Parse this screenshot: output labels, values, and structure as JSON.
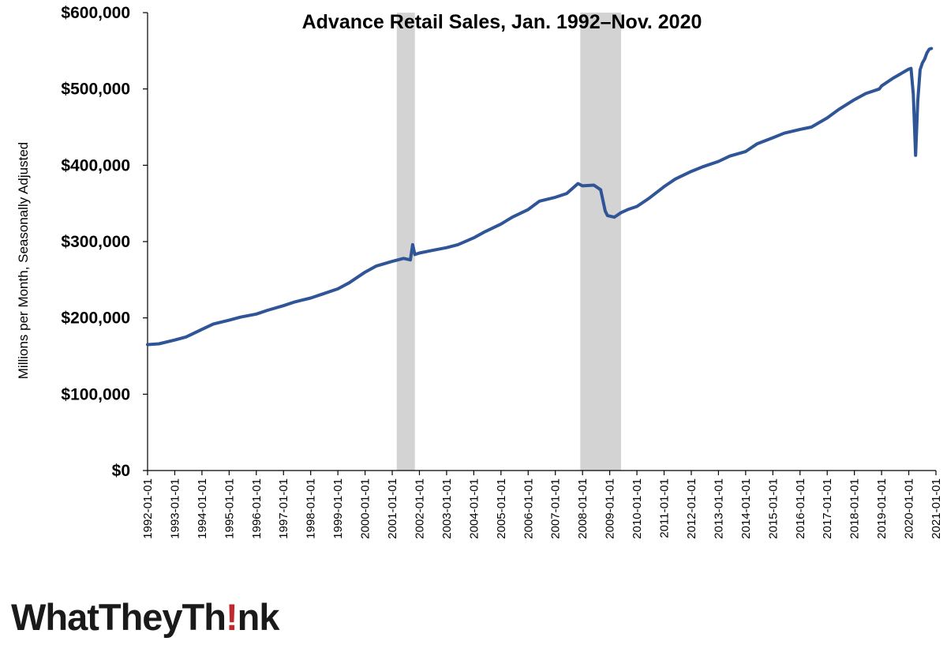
{
  "chart_data": {
    "type": "line",
    "title": "Advance Retail Sales, Jan. 1992–Nov. 2020",
    "ylabel": "Millions per Month, Seasonally Adjusted",
    "xlabel": "",
    "ylim": [
      0,
      600000
    ],
    "xlim": [
      "1992-01-01",
      "2021-01-01"
    ],
    "yticks": [
      "$0",
      "$100,000",
      "$200,000",
      "$300,000",
      "$400,000",
      "$500,000",
      "$600,000"
    ],
    "ytick_values": [
      0,
      100000,
      200000,
      300000,
      400000,
      500000,
      600000
    ],
    "xticks": [
      "1992-01-01",
      "1993-01-01",
      "1994-01-01",
      "1995-01-01",
      "1996-01-01",
      "1997-01-01",
      "1998-01-01",
      "1999-01-01",
      "2000-01-01",
      "2001-01-01",
      "2002-01-01",
      "2003-01-01",
      "2004-01-01",
      "2005-01-01",
      "2006-01-01",
      "2007-01-01",
      "2008-01-01",
      "2009-01-01",
      "2010-01-01",
      "2011-01-01",
      "2012-01-01",
      "2013-01-01",
      "2014-01-01",
      "2015-01-01",
      "2016-01-01",
      "2017-01-01",
      "2018-01-01",
      "2019-01-01",
      "2020-01-01",
      "2021-01-01"
    ],
    "grid": false,
    "line_color": "#2f5597",
    "recession_color": "#d3d3d3",
    "recession_periods": [
      {
        "start": "2001-03-01",
        "end": "2001-11-01"
      },
      {
        "start": "2007-12-01",
        "end": "2009-06-01"
      }
    ],
    "series": [
      {
        "x": [
          "1992-01-01",
          "1992-06-01",
          "1993-01-01",
          "1993-06-01",
          "1994-01-01",
          "1994-06-01",
          "1995-01-01",
          "1995-06-01",
          "1996-01-01",
          "1996-06-01",
          "1997-01-01",
          "1997-06-01",
          "1998-01-01",
          "1998-06-01",
          "1999-01-01",
          "1999-06-01",
          "2000-01-01",
          "2000-06-01",
          "2001-01-01",
          "2001-06-01",
          "2001-09-01",
          "2001-10-01",
          "2001-11-01",
          "2002-01-01",
          "2002-06-01",
          "2003-01-01",
          "2003-06-01",
          "2004-01-01",
          "2004-06-01",
          "2005-01-01",
          "2005-06-01",
          "2006-01-01",
          "2006-06-01",
          "2007-01-01",
          "2007-06-01",
          "2007-11-01",
          "2008-01-01",
          "2008-06-01",
          "2008-09-01",
          "2008-11-01",
          "2008-12-01",
          "2009-03-01",
          "2009-06-01",
          "2009-09-01",
          "2010-01-01",
          "2010-06-01",
          "2011-01-01",
          "2011-06-01",
          "2012-01-01",
          "2012-06-01",
          "2013-01-01",
          "2013-06-01",
          "2014-01-01",
          "2014-06-01",
          "2015-01-01",
          "2015-06-01",
          "2016-01-01",
          "2016-06-01",
          "2017-01-01",
          "2017-06-01",
          "2018-01-01",
          "2018-06-01",
          "2018-12-01",
          "2019-01-01",
          "2019-06-01",
          "2020-01-01",
          "2020-02-01",
          "2020-03-01",
          "2020-04-01",
          "2020-05-01",
          "2020-06-01",
          "2020-07-01",
          "2020-08-01",
          "2020-09-01",
          "2020-10-01",
          "2020-11-01"
        ],
        "values": [
          165000,
          166000,
          171000,
          175000,
          185000,
          192000,
          197000,
          201000,
          205000,
          210000,
          216000,
          221000,
          226000,
          231000,
          238000,
          246000,
          260000,
          268000,
          274000,
          278000,
          276000,
          296000,
          283000,
          285000,
          288000,
          292000,
          296000,
          305000,
          313000,
          323000,
          332000,
          342000,
          353000,
          358000,
          363000,
          376000,
          373000,
          374000,
          368000,
          340000,
          334000,
          332000,
          338000,
          342000,
          346000,
          356000,
          372000,
          382000,
          392000,
          398000,
          405000,
          412000,
          418000,
          428000,
          436000,
          442000,
          447000,
          450000,
          462000,
          473000,
          486000,
          494000,
          500000,
          504000,
          514000,
          526000,
          527000,
          493000,
          413000,
          485000,
          525000,
          534000,
          539000,
          547000,
          552000,
          553000
        ]
      }
    ]
  },
  "logo": {
    "prefix": "WhatTheyTh",
    "mark": "!",
    "suffix": "nk"
  }
}
